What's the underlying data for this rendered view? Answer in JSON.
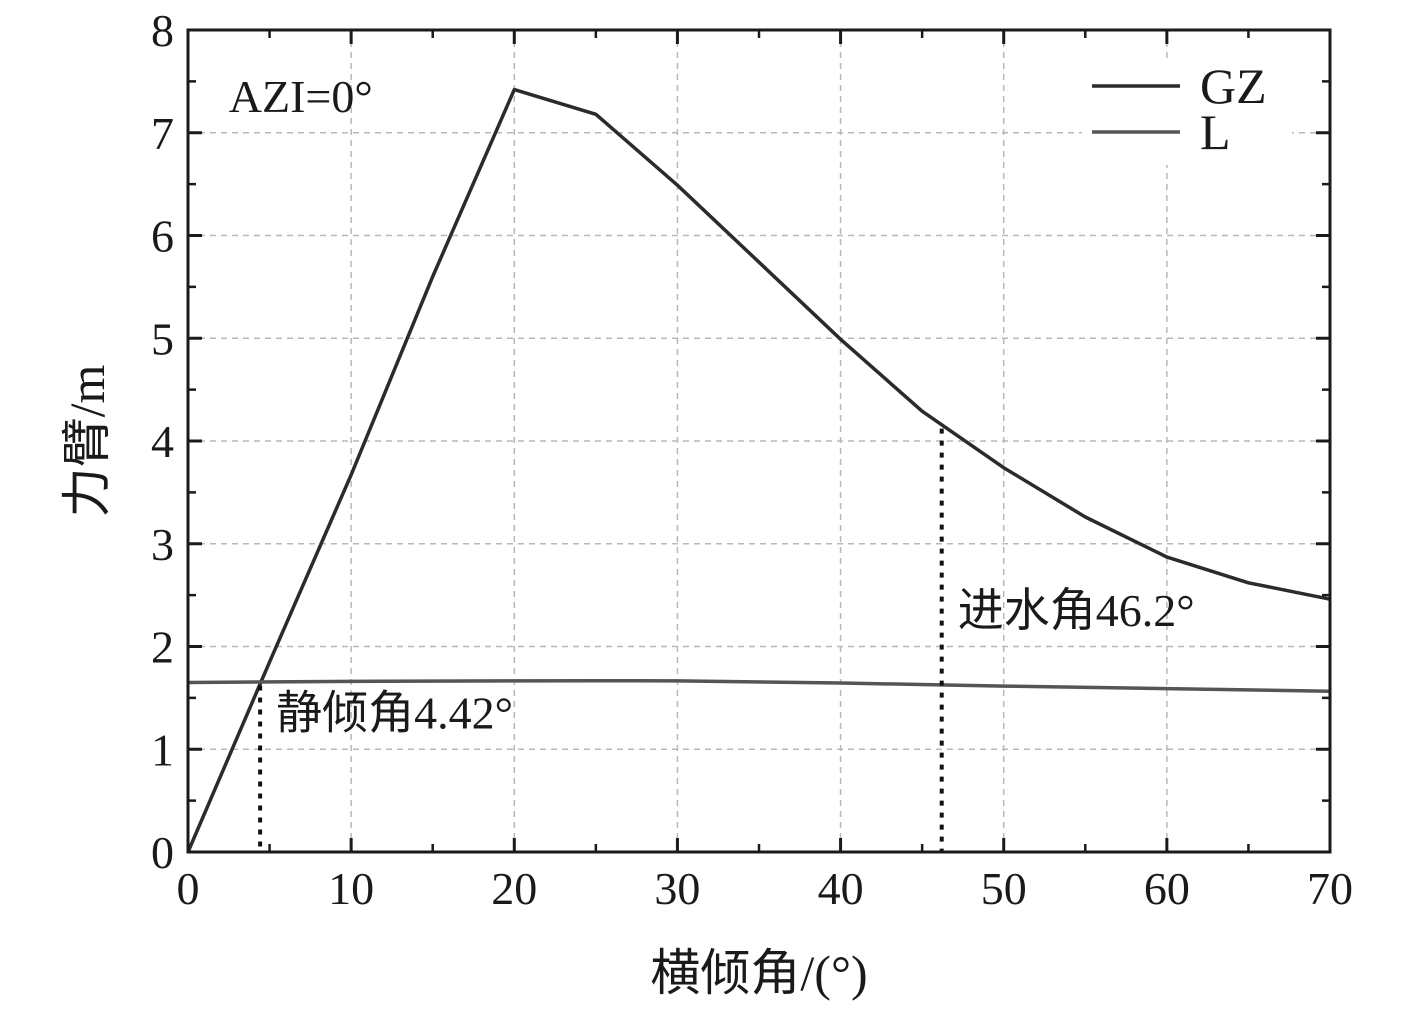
{
  "chart_data": {
    "type": "line",
    "xlabel": "横倾角/(°)",
    "ylabel": "力臂/m",
    "xlim": [
      0,
      70
    ],
    "ylim": [
      0,
      8
    ],
    "x_ticks": [
      0,
      10,
      20,
      30,
      40,
      50,
      60,
      70
    ],
    "y_ticks": [
      0,
      1,
      2,
      3,
      4,
      5,
      6,
      7,
      8
    ],
    "grid": true,
    "legend_position": "top-right",
    "colors": {
      "GZ": "#2b2b2b",
      "L": "#555555"
    },
    "series": [
      {
        "name": "GZ",
        "x": [
          0,
          5,
          10,
          15,
          20,
          25,
          30,
          35,
          40,
          45,
          50,
          55,
          60,
          65,
          70
        ],
        "y": [
          0,
          1.85,
          3.67,
          5.6,
          7.42,
          7.18,
          6.49,
          5.74,
          4.99,
          4.29,
          3.74,
          3.26,
          2.87,
          2.62,
          2.46
        ]
      },
      {
        "name": "L",
        "x": [
          0,
          10,
          20,
          25,
          30,
          40,
          50,
          60,
          70
        ],
        "y": [
          1.65,
          1.66,
          1.665,
          1.667,
          1.665,
          1.645,
          1.615,
          1.59,
          1.565
        ]
      }
    ],
    "annotations": [
      {
        "text": "AZI=0°",
        "x": 2.5,
        "y": 7.2
      },
      {
        "text": "静倾角4.42°",
        "x": 4.42,
        "y": 1.2,
        "marker_y": 1.62
      },
      {
        "text": "进水角46.2°",
        "x": 46.2,
        "y": 2.2,
        "marker_y": 4.12
      }
    ]
  }
}
